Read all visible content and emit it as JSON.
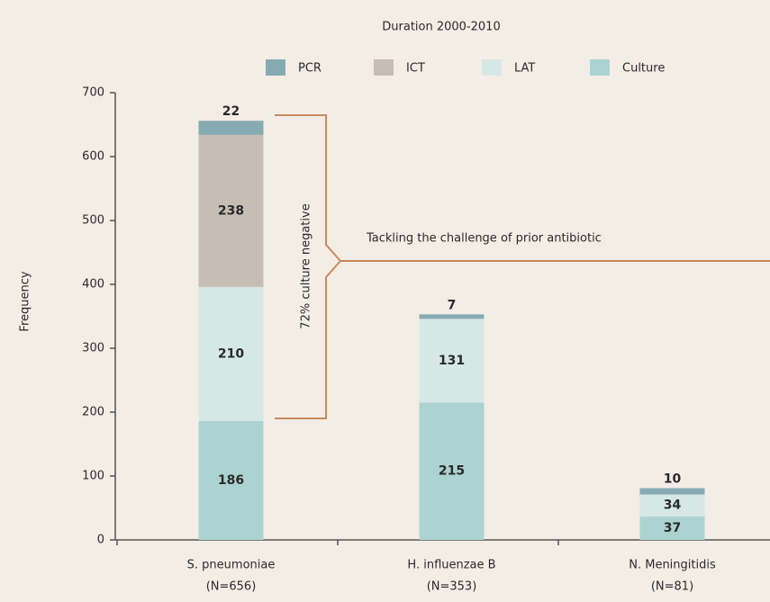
{
  "chart_data": {
    "type": "stacked_bar",
    "title": "Duration 2000-2010",
    "y_label": "Frequency",
    "categories": [
      [
        "S. pneumoniae",
        "(N=656)"
      ],
      [
        "H. influenzae B",
        "(N=353)"
      ],
      [
        "N. Meningitidis",
        "(N=81)"
      ]
    ],
    "series": [
      {
        "name": "PCR",
        "color": "#86aab2",
        "values": [
          22,
          7,
          10
        ]
      },
      {
        "name": "ICT",
        "color": "#c6beb4",
        "values": [
          238,
          null,
          null
        ]
      },
      {
        "name": "LAT",
        "color": "#d5e8e5",
        "values": [
          210,
          131,
          34
        ]
      },
      {
        "name": "Culture",
        "color": "#acd3d1",
        "values": [
          186,
          215,
          37
        ]
      }
    ],
    "ylim": [
      0,
      700
    ],
    "yticks": [
      0,
      100,
      200,
      300,
      400,
      500,
      600,
      700
    ],
    "annotations": [
      "72% culture negative",
      "Tackling the challenge of prior antibiotic"
    ]
  }
}
